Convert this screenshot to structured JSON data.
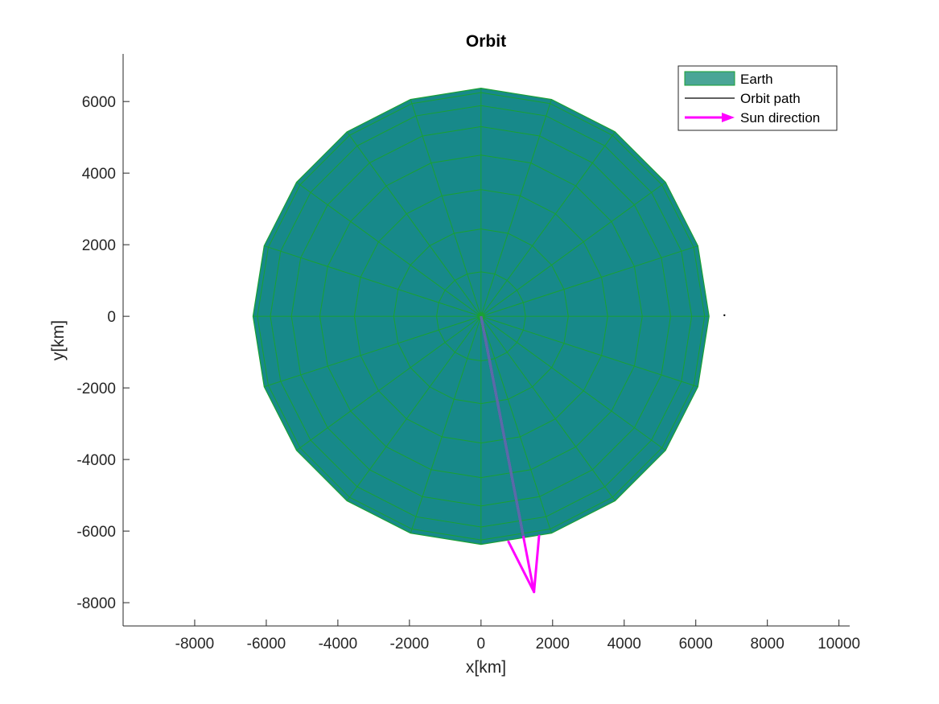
{
  "chart_data": {
    "type": "line",
    "title": "Orbit",
    "xlabel": "x[km]",
    "ylabel": "y[km]",
    "xlim": [
      -10000,
      10300
    ],
    "ylim": [
      -8650,
      7330
    ],
    "xticks": [
      -8000,
      -6000,
      -4000,
      -2000,
      0,
      2000,
      4000,
      6000,
      8000,
      10000
    ],
    "yticks": [
      -8000,
      -6000,
      -4000,
      -2000,
      0,
      2000,
      4000,
      6000
    ],
    "grid": false,
    "legend_position": "top-right",
    "earth": {
      "name": "Earth",
      "radius": 6371,
      "sectors": 20,
      "rings": 8,
      "face_color": "#17898a",
      "edge_color": "#1aa033",
      "legend_color": "#4aa596"
    },
    "orbit_path": {
      "name": "Orbit path",
      "color": "#000000",
      "x": [
        6800
      ],
      "y": [
        30
      ]
    },
    "sun_direction": {
      "name": "Sun direction",
      "color": "#ff00ff",
      "start": [
        0,
        0
      ],
      "end": [
        1480,
        -7700
      ]
    }
  }
}
